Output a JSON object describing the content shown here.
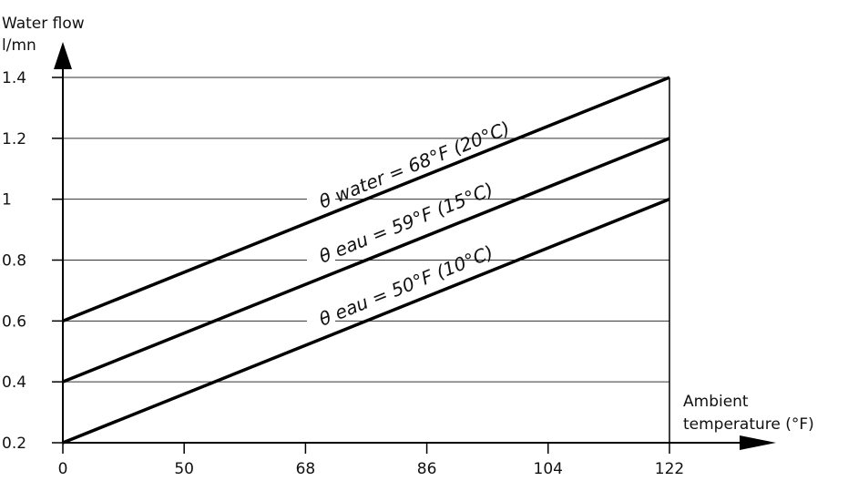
{
  "chart_data": {
    "type": "line",
    "ylabel_line1": "Water flow",
    "ylabel_line2": "l/mn",
    "xlabel_line1": "Ambient",
    "xlabel_line2": "temperature (°F)",
    "x_ticks": [
      "0",
      "50",
      "68",
      "86",
      "104",
      "122"
    ],
    "y_ticks": [
      "0.2",
      "0.4",
      "0.6",
      "0.8",
      "1",
      "1.2",
      "1.4"
    ],
    "x_tick_values": [
      0,
      20.33,
      40.67,
      61,
      81.33,
      101.67
    ],
    "y_tick_values": [
      0.2,
      0.4,
      0.6,
      0.8,
      1,
      1.2,
      1.4
    ],
    "xlim": [
      0,
      101.67
    ],
    "ylim": [
      0.2,
      1.4
    ],
    "grid": true,
    "series": [
      {
        "name": "θ water = 68°F (20°C)",
        "x": [
          0,
          101.67
        ],
        "y": [
          0.6,
          1.4
        ]
      },
      {
        "name": "θ eau = 59°F (15°C)",
        "x": [
          0,
          101.67
        ],
        "y": [
          0.4,
          1.2
        ]
      },
      {
        "name": "θ eau = 50°F (10°C)",
        "x": [
          0,
          101.67
        ],
        "y": [
          0.2,
          1.0
        ]
      }
    ]
  }
}
